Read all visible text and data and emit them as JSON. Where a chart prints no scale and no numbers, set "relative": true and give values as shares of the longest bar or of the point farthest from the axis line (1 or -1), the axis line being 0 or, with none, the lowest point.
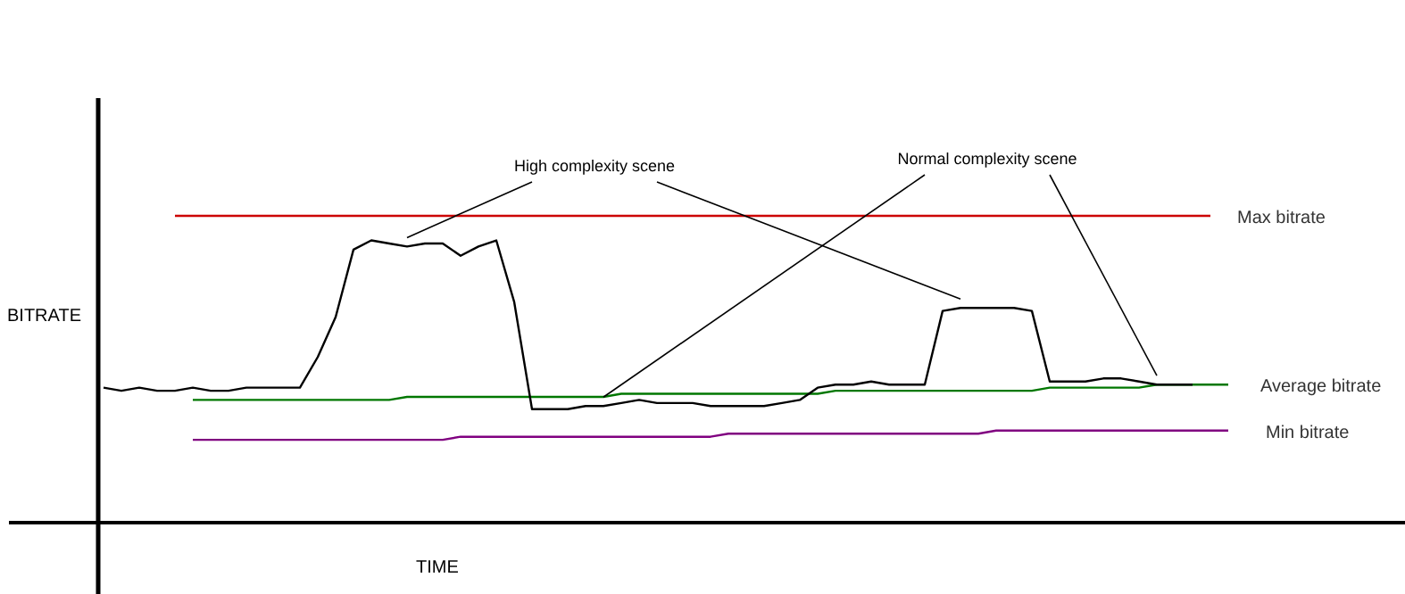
{
  "chart_data": {
    "type": "line",
    "relative": true,
    "ylabel": "BITRATE",
    "xlabel": "TIME",
    "categories": [
      null,
      null,
      null,
      null,
      null,
      null,
      null,
      null,
      null,
      null,
      null,
      null,
      null,
      null,
      null,
      null,
      null,
      null,
      null,
      null,
      null,
      null,
      null,
      null,
      null,
      null,
      null,
      null,
      null,
      null,
      null,
      null,
      null,
      null,
      null,
      null,
      null,
      null,
      null,
      null,
      null,
      null,
      null,
      null,
      null,
      null,
      null,
      null,
      null,
      null,
      null,
      null,
      null,
      null,
      null,
      null,
      null,
      null,
      null,
      null,
      null,
      null,
      null,
      null
    ],
    "annotations": [
      "High complexity scene",
      "Normal complexity scene"
    ],
    "series": [
      {
        "color": "#000000",
        "values": [
          0.44,
          0.43,
          0.44,
          0.43,
          0.43,
          0.44,
          0.43,
          0.43,
          0.44,
          0.44,
          0.44,
          0.44,
          0.54,
          0.67,
          0.89,
          0.92,
          0.91,
          0.9,
          0.91,
          0.91,
          0.87,
          0.9,
          0.92,
          0.72,
          0.37,
          0.37,
          0.37,
          0.38,
          0.38,
          0.39,
          0.4,
          0.39,
          0.39,
          0.39,
          0.38,
          0.38,
          0.38,
          0.38,
          0.39,
          0.4,
          0.44,
          0.45,
          0.45,
          0.46,
          0.45,
          0.45,
          0.45,
          0.69,
          0.7,
          0.7,
          0.7,
          0.7,
          0.69,
          0.46,
          0.46,
          0.46,
          0.47,
          0.47,
          0.46,
          0.45,
          0.45,
          0.45,
          null,
          null
        ]
      },
      {
        "name": "Max bitrate",
        "color": "#cc0000",
        "values": [
          null,
          null,
          null,
          null,
          1,
          1,
          1,
          1,
          1,
          1,
          1,
          1,
          1,
          1,
          1,
          1,
          1,
          1,
          1,
          1,
          1,
          1,
          1,
          1,
          1,
          1,
          1,
          1,
          1,
          1,
          1,
          1,
          1,
          1,
          1,
          1,
          1,
          1,
          1,
          1,
          1,
          1,
          1,
          1,
          1,
          1,
          1,
          1,
          1,
          1,
          1,
          1,
          1,
          1,
          1,
          1,
          1,
          1,
          1,
          1,
          1,
          1,
          1,
          null
        ]
      },
      {
        "name": "Average bitrate",
        "color": "#007700",
        "values": [
          null,
          null,
          null,
          null,
          null,
          0.4,
          0.4,
          0.4,
          0.4,
          0.4,
          0.4,
          0.4,
          0.4,
          0.4,
          0.4,
          0.4,
          0.4,
          0.41,
          0.41,
          0.41,
          0.41,
          0.41,
          0.41,
          0.41,
          0.41,
          0.41,
          0.41,
          0.41,
          0.41,
          0.42,
          0.42,
          0.42,
          0.42,
          0.42,
          0.42,
          0.42,
          0.42,
          0.42,
          0.42,
          0.42,
          0.42,
          0.43,
          0.43,
          0.43,
          0.43,
          0.43,
          0.43,
          0.43,
          0.43,
          0.43,
          0.43,
          0.43,
          0.43,
          0.44,
          0.44,
          0.44,
          0.44,
          0.44,
          0.44,
          0.45,
          0.45,
          0.45,
          0.45,
          0.45
        ]
      },
      {
        "name": "Min bitrate",
        "color": "#800080",
        "values": [
          null,
          null,
          null,
          null,
          null,
          0.27,
          0.27,
          0.27,
          0.27,
          0.27,
          0.27,
          0.27,
          0.27,
          0.27,
          0.27,
          0.27,
          0.27,
          0.27,
          0.27,
          0.27,
          0.28,
          0.28,
          0.28,
          0.28,
          0.28,
          0.28,
          0.28,
          0.28,
          0.28,
          0.28,
          0.28,
          0.28,
          0.28,
          0.28,
          0.28,
          0.29,
          0.29,
          0.29,
          0.29,
          0.29,
          0.29,
          0.29,
          0.29,
          0.29,
          0.29,
          0.29,
          0.29,
          0.29,
          0.29,
          0.29,
          0.3,
          0.3,
          0.3,
          0.3,
          0.3,
          0.3,
          0.3,
          0.3,
          0.3,
          0.3,
          0.3,
          0.3,
          0.3,
          0.3
        ]
      }
    ]
  }
}
